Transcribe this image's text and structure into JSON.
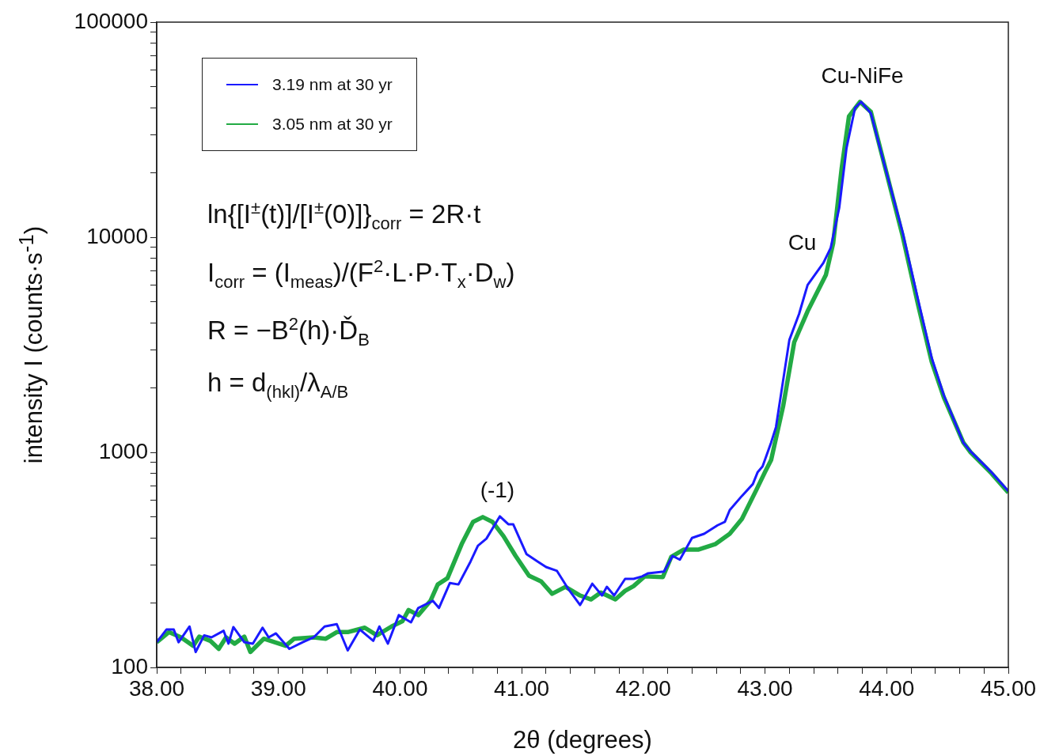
{
  "chart_data": {
    "type": "line",
    "xlabel": "2θ (degrees)",
    "ylabel": "intensity I (counts·s$^{-1}$)",
    "log": "y",
    "grid": false,
    "legend": "top left",
    "marker": "none",
    "line_style": "solid",
    "xlim": [
      38,
      45
    ],
    "xticks": [
      {
        "value": 38,
        "label": "38.00"
      },
      {
        "value": 38.2,
        "label": null
      },
      {
        "value": 38.4,
        "label": null
      },
      {
        "value": 38.6,
        "label": null
      },
      {
        "value": 38.8,
        "label": null
      },
      {
        "value": 39,
        "label": "39.00"
      },
      {
        "value": 39.2,
        "label": null
      },
      {
        "value": 39.4,
        "label": null
      },
      {
        "value": 39.6,
        "label": null
      },
      {
        "value": 39.8,
        "label": null
      },
      {
        "value": 40,
        "label": "40.00"
      },
      {
        "value": 40.2,
        "label": null
      },
      {
        "value": 40.4,
        "label": null
      },
      {
        "value": 40.6,
        "label": null
      },
      {
        "value": 40.8,
        "label": null
      },
      {
        "value": 41,
        "label": "41.00"
      },
      {
        "value": 41.2,
        "label": null
      },
      {
        "value": 41.4,
        "label": null
      },
      {
        "value": 41.6,
        "label": null
      },
      {
        "value": 41.8,
        "label": null
      },
      {
        "value": 42,
        "label": "42.00"
      },
      {
        "value": 42.2,
        "label": null
      },
      {
        "value": 42.4,
        "label": null
      },
      {
        "value": 42.6,
        "label": null
      },
      {
        "value": 42.8,
        "label": null
      },
      {
        "value": 43,
        "label": "43.00"
      },
      {
        "value": 43.2,
        "label": null
      },
      {
        "value": 43.4,
        "label": null
      },
      {
        "value": 43.6,
        "label": null
      },
      {
        "value": 43.8,
        "label": null
      },
      {
        "value": 44,
        "label": "44.00"
      },
      {
        "value": 44.2,
        "label": null
      },
      {
        "value": 44.4,
        "label": null
      },
      {
        "value": 44.6,
        "label": null
      },
      {
        "value": 44.8,
        "label": null
      },
      {
        "value": 45,
        "label": "45.00"
      }
    ],
    "ylim": [
      100,
      100000
    ],
    "yticks": [
      100,
      {
        "value": 200,
        "label": null
      },
      {
        "value": 300,
        "label": null
      },
      {
        "value": 400,
        "label": null
      },
      {
        "value": 500,
        "label": null
      },
      {
        "value": 600,
        "label": null
      },
      {
        "value": 700,
        "label": null
      },
      {
        "value": 800,
        "label": null
      },
      {
        "value": 900,
        "label": null
      },
      1000,
      {
        "value": 2000,
        "label": null
      },
      {
        "value": 3000,
        "label": null
      },
      {
        "value": 4000,
        "label": null
      },
      {
        "value": 5000,
        "label": null
      },
      {
        "value": 6000,
        "label": null
      },
      {
        "value": 7000,
        "label": null
      },
      {
        "value": 8000,
        "label": null
      },
      {
        "value": 9000,
        "label": null
      },
      10000,
      {
        "value": 20000,
        "label": null
      },
      {
        "value": 30000,
        "label": null
      },
      {
        "value": 40000,
        "label": null
      },
      {
        "value": 50000,
        "label": null
      },
      {
        "value": 60000,
        "label": null
      },
      {
        "value": 70000,
        "label": null
      },
      {
        "value": 80000,
        "label": null
      },
      {
        "value": 90000,
        "label": null
      },
      100000
    ],
    "series": [
      {
        "name": "3.19 nm at 30 yr",
        "color": "#1a1aff",
        "x": [
          38.0,
          38.08,
          38.14,
          38.18,
          38.27,
          38.32,
          38.39,
          38.45,
          38.55,
          38.59,
          38.63,
          38.72,
          38.79,
          38.87,
          38.92,
          38.98,
          39.09,
          39.2,
          39.29,
          39.38,
          39.48,
          39.57,
          39.67,
          39.78,
          39.83,
          39.9,
          39.99,
          40.09,
          40.15,
          40.27,
          40.32,
          40.41,
          40.48,
          40.58,
          40.64,
          40.71,
          40.82,
          40.89,
          40.93,
          41.04,
          41.13,
          41.2,
          41.29,
          41.38,
          41.48,
          41.58,
          41.66,
          41.7,
          41.76,
          41.85,
          41.92,
          41.99,
          42.04,
          42.17,
          42.24,
          42.3,
          42.4,
          42.5,
          42.61,
          42.67,
          42.71,
          42.81,
          42.9,
          42.94,
          42.98,
          43.05,
          43.09,
          43.2,
          43.28,
          43.35,
          43.48,
          43.54,
          43.61,
          43.67,
          43.74,
          43.79,
          43.87,
          43.98,
          44.13,
          44.26,
          44.37,
          44.47,
          44.63,
          44.69,
          44.86,
          45.0
        ],
        "values": [
          131,
          150,
          150,
          131,
          155,
          118,
          141,
          138,
          148,
          129,
          154,
          131,
          129,
          153,
          138,
          144,
          122,
          131,
          138,
          155,
          159,
          120,
          150,
          133,
          155,
          129,
          175,
          162,
          189,
          204,
          189,
          247,
          243,
          311,
          368,
          397,
          504,
          463,
          463,
          336,
          311,
          293,
          281,
          233,
          195,
          245,
          216,
          237,
          216,
          258,
          258,
          265,
          274,
          279,
          330,
          317,
          400,
          418,
          458,
          475,
          539,
          627,
          712,
          810,
          860,
          1110,
          1310,
          3330,
          4400,
          6000,
          7600,
          8930,
          13700,
          26000,
          39900,
          42600,
          37700,
          21900,
          10600,
          5070,
          2750,
          1840,
          1110,
          1010,
          810,
          660
        ]
      },
      {
        "name": "3.05 nm at 30 yr",
        "color": "#22aa44",
        "x": [
          38.0,
          38.1,
          38.2,
          38.3,
          38.35,
          38.44,
          38.51,
          38.57,
          38.64,
          38.72,
          38.77,
          38.88,
          39.06,
          39.13,
          39.29,
          39.39,
          39.48,
          39.57,
          39.71,
          39.81,
          39.93,
          40.02,
          40.07,
          40.15,
          40.25,
          40.31,
          40.39,
          40.51,
          40.6,
          40.68,
          40.76,
          40.85,
          40.95,
          41.06,
          41.16,
          41.25,
          41.36,
          41.48,
          41.57,
          41.65,
          41.77,
          41.85,
          41.92,
          42.01,
          42.16,
          42.23,
          42.33,
          42.45,
          42.59,
          42.71,
          42.81,
          42.93,
          43.0,
          43.05,
          43.15,
          43.24,
          43.35,
          43.5,
          43.56,
          43.63,
          43.69,
          43.78,
          43.87,
          43.98,
          44.13,
          44.26,
          44.37,
          44.47,
          44.63,
          44.69,
          44.86,
          45.0
        ],
        "values": [
          131,
          146,
          138,
          126,
          139,
          133,
          122,
          138,
          129,
          139,
          118,
          136,
          126,
          136,
          138,
          136,
          146,
          146,
          153,
          141,
          155,
          164,
          185,
          175,
          204,
          243,
          260,
          378,
          475,
          500,
          475,
          408,
          330,
          267,
          251,
          220,
          237,
          216,
          207,
          223,
          207,
          227,
          239,
          265,
          263,
          327,
          353,
          353,
          374,
          418,
          490,
          671,
          810,
          920,
          1650,
          3250,
          4530,
          6670,
          9350,
          20900,
          36500,
          42600,
          38300,
          21900,
          10200,
          4800,
          2640,
          1800,
          1110,
          1000,
          800,
          650
        ]
      }
    ],
    "annotations": [
      {
        "text": "(-1)",
        "x": 40.8,
        "y": 504
      },
      {
        "text": "Cu",
        "x": 43.5,
        "y": 7600
      },
      {
        "text": "Cu-NiFe",
        "x": 43.8,
        "y": 42600
      },
      "ln{[I$^{±}$(t)]/[I$^{±}$(0)]}$_{corr}$ = 2R·t",
      "I$_{corr}$ = (I$_{meas}$)/(F$^{2}$·L·P·T$_{x}$·D$_{w}$)",
      "R = −B$^{2}$(h)·Ď$_{B}$",
      "h = d$_{(hkl)}$/λ$_{A/B}$"
    ]
  }
}
